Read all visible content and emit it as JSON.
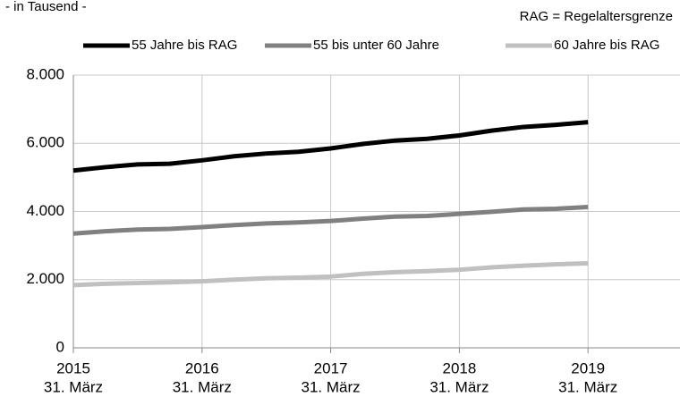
{
  "chart_data": {
    "type": "line",
    "subtitle": "- in Tausend -",
    "annotation": "RAG = Regelaltersgrenze",
    "x": [
      2015,
      2015.25,
      2015.5,
      2015.75,
      2016,
      2016.25,
      2016.5,
      2016.75,
      2017,
      2017.25,
      2017.5,
      2017.75,
      2018,
      2018.25,
      2018.5,
      2018.75,
      2019
    ],
    "series": [
      {
        "name": "55 Jahre bis RAG",
        "color": "#000000",
        "values": [
          5200,
          5300,
          5380,
          5400,
          5500,
          5620,
          5700,
          5750,
          5850,
          5980,
          6080,
          6130,
          6230,
          6370,
          6480,
          6540,
          6620
        ]
      },
      {
        "name": "55 bis unter 60 Jahre",
        "color": "#808080",
        "values": [
          3350,
          3420,
          3470,
          3490,
          3540,
          3600,
          3650,
          3680,
          3720,
          3790,
          3850,
          3870,
          3930,
          3990,
          4060,
          4080,
          4130
        ]
      },
      {
        "name": "60 Jahre bis RAG",
        "color": "#c0c0c0",
        "values": [
          1840,
          1880,
          1900,
          1920,
          1950,
          2000,
          2040,
          2060,
          2090,
          2170,
          2220,
          2250,
          2290,
          2360,
          2410,
          2450,
          2480
        ]
      }
    ],
    "xlim": [
      2015,
      2020
    ],
    "xticks": [
      {
        "value": 2015,
        "label": "2015"
      },
      {
        "value": 2016,
        "label": "2016"
      },
      {
        "value": 2017,
        "label": "2017"
      },
      {
        "value": 2018,
        "label": "2018"
      },
      {
        "value": 2019,
        "label": "2019"
      }
    ],
    "xtick_sublabel": "31. März",
    "ylim": [
      0,
      8000
    ],
    "yticks": [
      0,
      {
        "value": 2000,
        "label": "2.000"
      },
      {
        "value": 4000,
        "label": "4.000"
      },
      {
        "value": 6000,
        "label": "6.000"
      },
      {
        "value": 8000,
        "label": "8.000"
      }
    ],
    "grid": true
  }
}
